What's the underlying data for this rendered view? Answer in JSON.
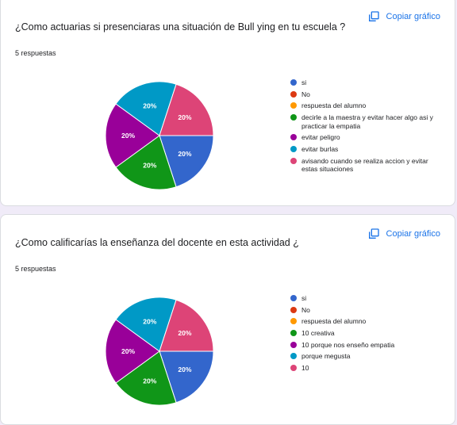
{
  "copy_label": "Copiar gráfico",
  "chart_data": [
    {
      "type": "pie",
      "title": "¿Como actuarias si presenciaras una situación de Bull ying en tu escuela ?",
      "subtitle": "5 respuestas",
      "legend_position": "right",
      "legend": [
        {
          "label": "si",
          "color": "#3366cc"
        },
        {
          "label": "No",
          "color": "#dc3912"
        },
        {
          "label": "respuesta del alumno",
          "color": "#ff9900"
        },
        {
          "label": "decirle a la maestra y evitar hacer algo asi y practicar la empatia",
          "color": "#109618"
        },
        {
          "label": "evitar peligro",
          "color": "#990099"
        },
        {
          "label": "evitar burlas",
          "color": "#0099c6"
        },
        {
          "label": "avisando cuando se realiza accion y evitar estas situaciones",
          "color": "#dd4477"
        }
      ],
      "slices": [
        {
          "label": "si",
          "value": 20,
          "pct": "20%",
          "color": "#3366cc"
        },
        {
          "label": "decirle a la maestra y evitar hacer algo asi y practicar la empatia",
          "value": 20,
          "pct": "20%",
          "color": "#109618"
        },
        {
          "label": "evitar peligro",
          "value": 20,
          "pct": "20%",
          "color": "#990099"
        },
        {
          "label": "evitar burlas",
          "value": 20,
          "pct": "20%",
          "color": "#0099c6"
        },
        {
          "label": "avisando cuando se realiza accion y evitar estas situaciones",
          "value": 20,
          "pct": "20%",
          "color": "#dd4477"
        }
      ]
    },
    {
      "type": "pie",
      "title": "¿Como calificarías la enseñanza del docente en esta actividad ¿",
      "subtitle": "5 respuestas",
      "legend_position": "right",
      "legend": [
        {
          "label": "si",
          "color": "#3366cc"
        },
        {
          "label": "No",
          "color": "#dc3912"
        },
        {
          "label": "respuesta del alumno",
          "color": "#ff9900"
        },
        {
          "label": "10 creativa",
          "color": "#109618"
        },
        {
          "label": "10 porque nos enseño empatia",
          "color": "#990099"
        },
        {
          "label": "porque megusta",
          "color": "#0099c6"
        },
        {
          "label": "10",
          "color": "#dd4477"
        }
      ],
      "slices": [
        {
          "label": "si",
          "value": 20,
          "pct": "20%",
          "color": "#3366cc"
        },
        {
          "label": "10 creativa",
          "value": 20,
          "pct": "20%",
          "color": "#109618"
        },
        {
          "label": "10 porque nos enseño empatia",
          "value": 20,
          "pct": "20%",
          "color": "#990099"
        },
        {
          "label": "porque megusta",
          "value": 20,
          "pct": "20%",
          "color": "#0099c6"
        },
        {
          "label": "10",
          "value": 20,
          "pct": "20%",
          "color": "#dd4477"
        }
      ]
    }
  ]
}
